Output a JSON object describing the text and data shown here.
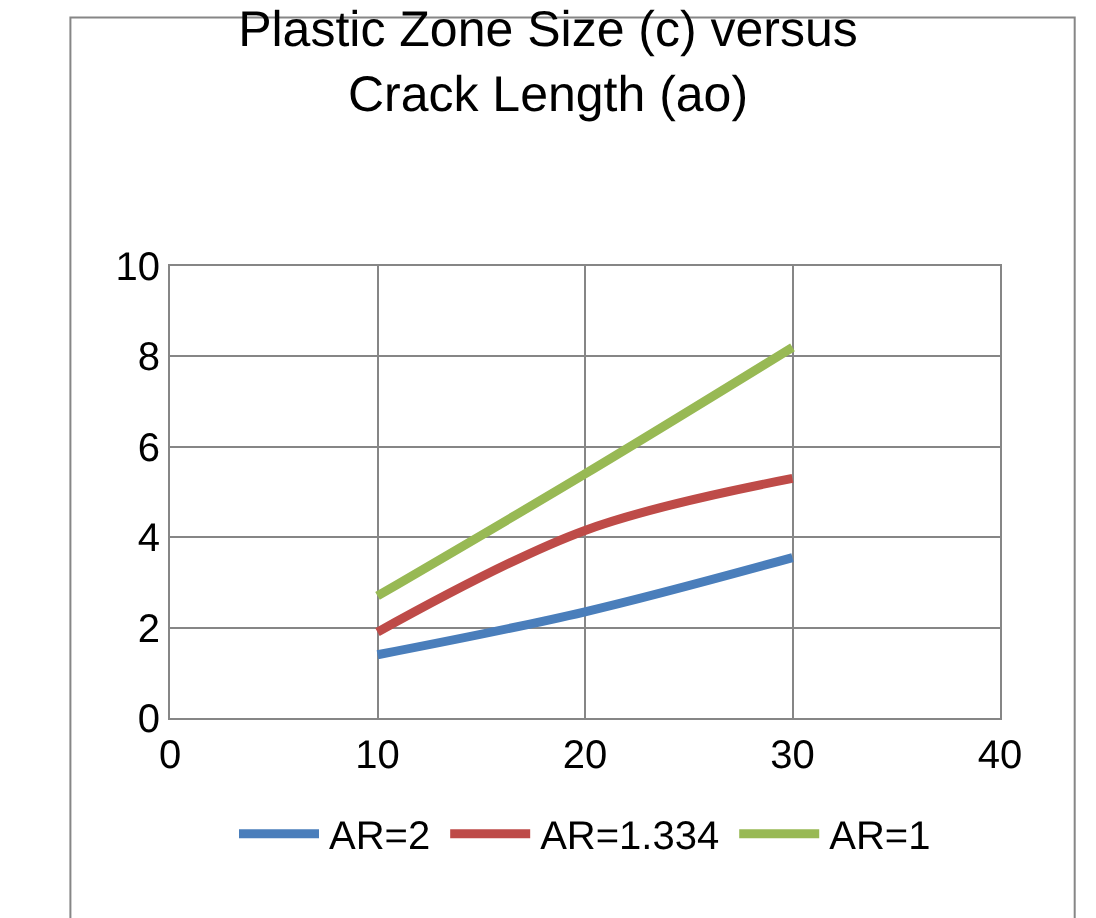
{
  "chart_data": {
    "type": "line",
    "title": "Plastic Zone Size (c) versus\nCrack Length (ao)",
    "x": [
      10,
      20,
      30
    ],
    "series": [
      {
        "name": "AR=2",
        "color": "#4a7ebb",
        "values": [
          1.4,
          2.35,
          3.55
        ]
      },
      {
        "name": "AR=1.334",
        "color": "#be4b48",
        "values": [
          1.9,
          4.15,
          5.3
        ]
      },
      {
        "name": "AR=1",
        "color": "#98b954",
        "values": [
          2.7,
          5.4,
          8.2
        ]
      }
    ],
    "xlim": [
      0,
      40
    ],
    "xticks": [
      0,
      10,
      20,
      30,
      40
    ],
    "ylim": [
      0,
      10
    ],
    "yticks": [
      0,
      2,
      4,
      6,
      8,
      10
    ],
    "grid": true,
    "legend": "bottom",
    "marker": "none",
    "line_style": "solid"
  }
}
